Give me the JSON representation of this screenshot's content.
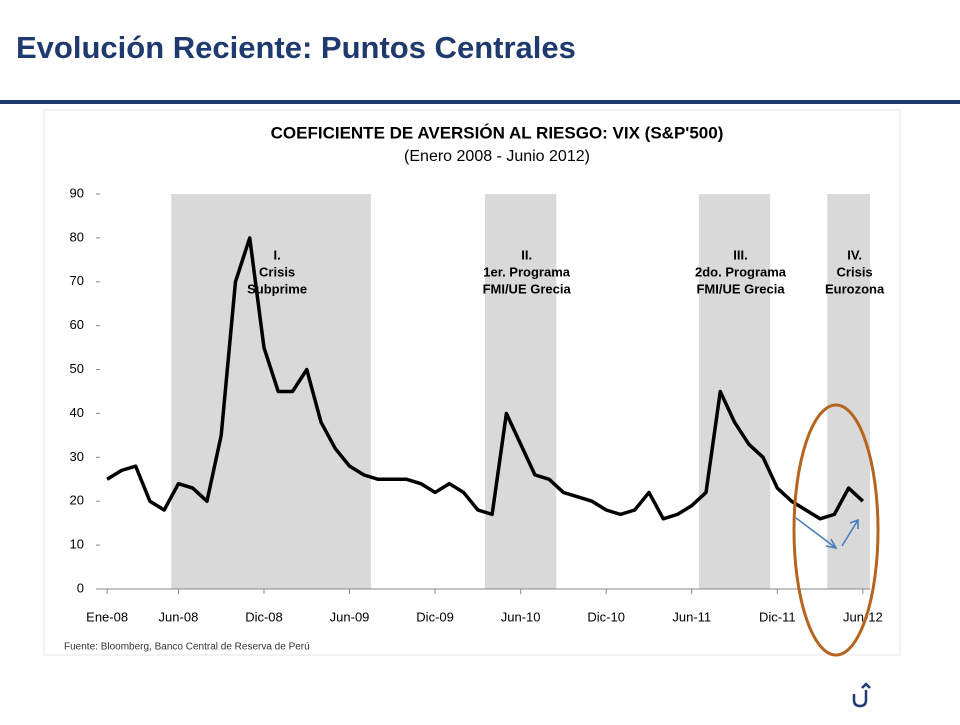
{
  "page_title": "Evolución Reciente: Puntos Centrales",
  "chart_data": {
    "type": "line",
    "title": "COEFICIENTE DE AVERSIÓN AL RIESGO: VIX (S&P'500)",
    "subtitle": "(Enero 2008 - Junio 2012)",
    "source": "Fuente: Bloomberg, Banco Central de Reserva de Perú",
    "xlim": [
      "2008-01",
      "2012-06"
    ],
    "xticks": [
      {
        "value": "2008-01",
        "label": "Ene-08"
      },
      {
        "value": "2008-06",
        "label": "Jun-08"
      },
      {
        "value": "2008-12",
        "label": "Dic-08"
      },
      {
        "value": "2009-06",
        "label": "Jun-09"
      },
      {
        "value": "2009-12",
        "label": "Dic-09"
      },
      {
        "value": "2010-06",
        "label": "Jun-10"
      },
      {
        "value": "2010-12",
        "label": "Dic-10"
      },
      {
        "value": "2011-06",
        "label": "Jun-11"
      },
      {
        "value": "2011-12",
        "label": "Dic-11"
      },
      {
        "value": "2012-06",
        "label": "Jun-12"
      }
    ],
    "ylim": [
      0,
      90
    ],
    "yticks": [
      0,
      10,
      20,
      30,
      40,
      50,
      60,
      70,
      80,
      90
    ],
    "x": [
      "2008-01",
      "2008-02",
      "2008-03",
      "2008-04",
      "2008-05",
      "2008-06",
      "2008-07",
      "2008-08",
      "2008-09",
      "2008-10",
      "2008-11",
      "2008-12",
      "2009-01",
      "2009-02",
      "2009-03",
      "2009-04",
      "2009-05",
      "2009-06",
      "2009-07",
      "2009-08",
      "2009-09",
      "2009-10",
      "2009-11",
      "2009-12",
      "2010-01",
      "2010-02",
      "2010-03",
      "2010-04",
      "2010-05",
      "2010-06",
      "2010-07",
      "2010-08",
      "2010-09",
      "2010-10",
      "2010-11",
      "2010-12",
      "2011-01",
      "2011-02",
      "2011-03",
      "2011-04",
      "2011-05",
      "2011-06",
      "2011-07",
      "2011-08",
      "2011-09",
      "2011-10",
      "2011-11",
      "2011-12",
      "2012-01",
      "2012-02",
      "2012-03",
      "2012-04",
      "2012-05",
      "2012-06"
    ],
    "series": [
      {
        "name": "VIX",
        "color": "#000000",
        "values": [
          25,
          27,
          28,
          20,
          18,
          24,
          23,
          20,
          35,
          70,
          80,
          55,
          45,
          45,
          50,
          38,
          32,
          28,
          26,
          25,
          25,
          25,
          24,
          22,
          24,
          22,
          18,
          17,
          40,
          33,
          26,
          25,
          22,
          21,
          20,
          18,
          17,
          18,
          22,
          16,
          17,
          19,
          22,
          45,
          38,
          33,
          30,
          23,
          20,
          18,
          16,
          17,
          23,
          20
        ]
      }
    ],
    "periods": [
      {
        "start": "2008-06",
        "end": "2009-07",
        "label": [
          "I.",
          "Crisis",
          "Subprime"
        ]
      },
      {
        "start": "2010-04",
        "end": "2010-08",
        "label": [
          "II.",
          "1er. Programa",
          "FMI/UE Grecia"
        ]
      },
      {
        "start": "2011-07",
        "end": "2011-11",
        "label": [
          "III.",
          "2do. Programa",
          "FMI/UE Grecia"
        ]
      },
      {
        "start": "2012-04",
        "end": "2012-06",
        "label": [
          "IV.",
          "Crisis",
          "Eurozona"
        ]
      }
    ],
    "band_color": "#d9d9d9"
  }
}
